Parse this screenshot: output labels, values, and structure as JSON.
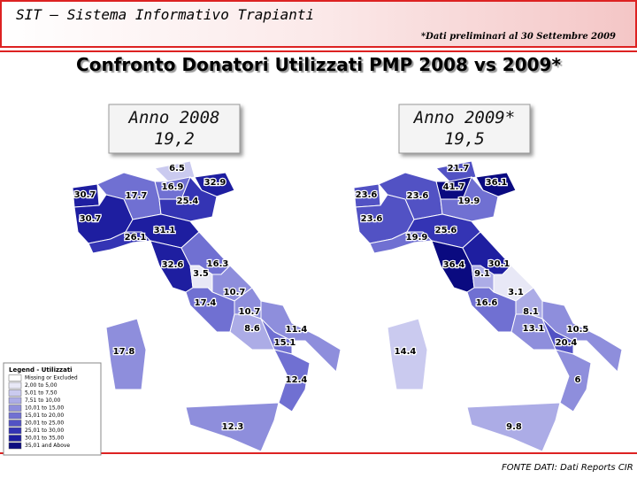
{
  "header": {
    "title": "SIT – Sistema Informativo Trapianti",
    "note": "*Dati preliminari al 30 Settembre 2009"
  },
  "title": "Confronto Donatori Utilizzati PMP 2008 vs 2009*",
  "maps": [
    {
      "label": "Anno 2008",
      "total": "19,2",
      "regions": [
        "6.5",
        "16.9",
        "32.9",
        "30.7",
        "17.7",
        "25.4",
        "30.7",
        "26.1",
        "31.1",
        "32.6",
        "16.3",
        "3.5",
        "10.7",
        "17.4",
        "10.7",
        "8.6",
        "11.4",
        "15.1",
        "17.8",
        "12.4",
        "12.3"
      ]
    },
    {
      "label": "Anno 2009*",
      "total": "19,5",
      "regions": [
        "21.7",
        "41.7",
        "36.1",
        "23.6",
        "23.6",
        "19.9",
        "23.6",
        "19.9",
        "25.6",
        "36.4",
        "30.1",
        "9.1",
        "3.1",
        "16.6",
        "8.1",
        "13.1",
        "10.5",
        "20.4",
        "14.4",
        "6",
        "9.8"
      ]
    }
  ],
  "legend": {
    "title": "Legend - Utilizzati",
    "items": [
      {
        "label": "Missing or Excluded",
        "color": "#ffffff"
      },
      {
        "label": "2,00 to 5,00",
        "color": "#e8e8f6"
      },
      {
        "label": "5,01 to 7,50",
        "color": "#cacaef"
      },
      {
        "label": "7,51 to 10,00",
        "color": "#acace6"
      },
      {
        "label": "10,01 to 15,00",
        "color": "#8e8edc"
      },
      {
        "label": "15,01 to 20,00",
        "color": "#7070d2"
      },
      {
        "label": "20,01 to 25,00",
        "color": "#5252c4"
      },
      {
        "label": "25,01 to 30,00",
        "color": "#3434b4"
      },
      {
        "label": "30,01 to 35,00",
        "color": "#1e1ea0"
      },
      {
        "label": "35,01 and Above",
        "color": "#0a0a80"
      }
    ]
  },
  "source": "FONTE DATI: Dati Reports CIR"
}
